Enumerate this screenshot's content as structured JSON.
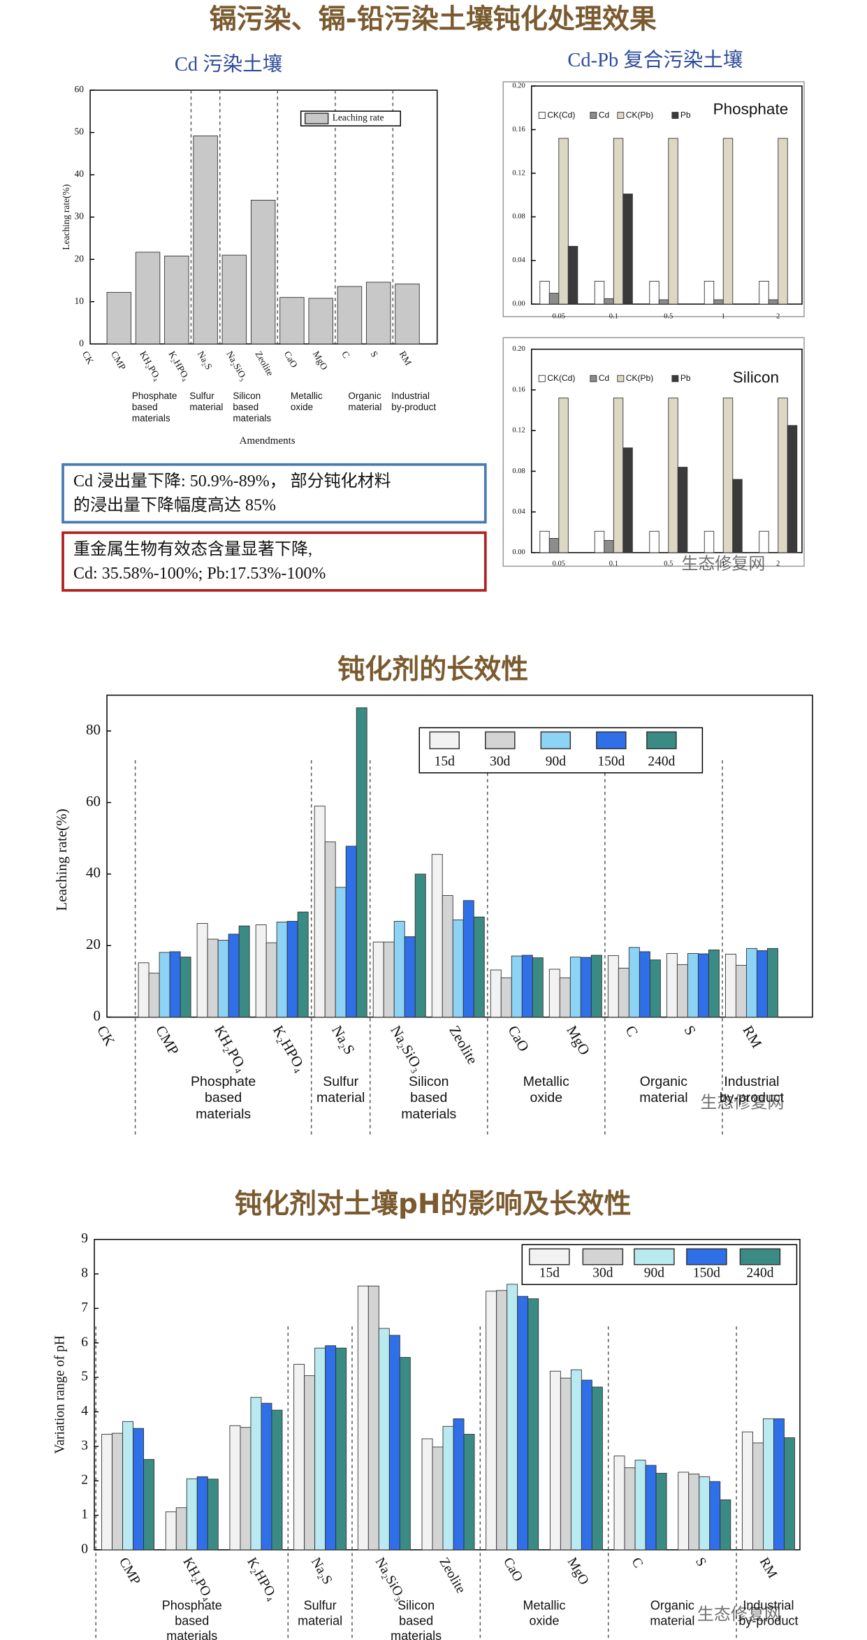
{
  "heading": "镉污染、镉-铅污染土壤钝化处理效果",
  "watermark": "生态修复网",
  "notes": [
    [
      "Cd 浸出量下降: 50.9%-89%， 部分钝化材料",
      "的浸出量下降幅度高达 85%"
    ],
    [
      "重金属生物有效态含量显著下降,",
      "Cd: 35.58%-100%; Pb:17.53%-100%"
    ]
  ],
  "chart_data": [
    {
      "type": "bar",
      "title": "Cd 污染土壤",
      "y_label": "Leaching rate(%)",
      "x_label": "Amendments",
      "categories": [
        "CK",
        "CMP",
        "KH₂PO₄",
        "K₂HPO₄",
        "Na₂S",
        "Na₂SiO₃",
        "Zeolite",
        "CaO",
        "MgO",
        "C",
        "S",
        "RM"
      ],
      "series": [
        {
          "name": "Leaching rate",
          "color": "#c8c8c8",
          "values": [
            0,
            12.2,
            21.7,
            20.8,
            49.2,
            21,
            34,
            11,
            10.8,
            13.6,
            14.6,
            14.2
          ]
        }
      ],
      "groups": [
        [
          "Phosphate",
          "based",
          "materials"
        ],
        [
          "Sulfur",
          "material"
        ],
        [
          "Silicon",
          "based",
          "materials"
        ],
        [
          "Metallic",
          "oxide"
        ],
        [
          "Organic",
          "material"
        ],
        [
          "Industrial",
          "by-product"
        ]
      ],
      "ylim": [
        0,
        60
      ],
      "yticks": [
        0,
        10,
        20,
        30,
        40,
        50,
        60
      ]
    },
    {
      "type": "bar",
      "title": "Cd-Pb 复合污染土壤",
      "label": "Phosphate",
      "categories": [
        "0.05",
        "0.1",
        "0.5",
        "1",
        "2"
      ],
      "series": [
        {
          "name": "CK(Cd)",
          "color": "#ffffff",
          "values": [
            0.021,
            0.021,
            0.021,
            0.021,
            0.021
          ]
        },
        {
          "name": "Cd",
          "color": "#8c8c8c",
          "values": [
            0.01,
            0.005,
            0.004,
            0.004,
            0.004
          ]
        },
        {
          "name": "CK(Pb)",
          "color": "#ddd8c4",
          "values": [
            0.152,
            0.152,
            0.152,
            0.152,
            0.152
          ]
        },
        {
          "name": "Pb",
          "color": "#3a3a3a",
          "values": [
            0.053,
            0.101,
            0,
            0,
            0
          ]
        }
      ],
      "ylim": [
        0,
        0.2
      ],
      "yticks": [
        {
          "value": 0,
          "label": "0.00"
        },
        0.04,
        0.08,
        0.12,
        0.16,
        {
          "value": 0.2,
          "label": "0.20"
        }
      ]
    },
    {
      "type": "bar",
      "label": "Silicon",
      "categories": [
        "0.05",
        "0.1",
        "0.5",
        "1",
        "2"
      ],
      "series": [
        {
          "name": "CK(Cd)",
          "color": "#ffffff",
          "values": [
            0.021,
            0.021,
            0.021,
            0.021,
            0.021
          ]
        },
        {
          "name": "Cd",
          "color": "#8c8c8c",
          "values": [
            0.014,
            0.012,
            0,
            0,
            0
          ]
        },
        {
          "name": "CK(Pb)",
          "color": "#ddd8c4",
          "values": [
            0.152,
            0.152,
            0.152,
            0.152,
            0.152
          ]
        },
        {
          "name": "Pb",
          "color": "#3a3a3a",
          "values": [
            0,
            0.103,
            0.084,
            0.072,
            0.125
          ]
        }
      ],
      "ylim": [
        0,
        0.2
      ],
      "yticks": [
        {
          "value": 0,
          "label": "0.00"
        },
        0.04,
        0.08,
        0.12,
        0.16,
        {
          "value": 0.2,
          "label": "0.20"
        }
      ]
    },
    {
      "type": "bar",
      "title": "钝化剂的长效性",
      "y_label": "Leaching rate(%)",
      "categories": [
        "CK",
        "CMP",
        "KH₂PO₄",
        "K₂HPO₄",
        "Na₂S",
        "Na₂SiO₃",
        "Zeolite",
        "CaO",
        "MgO",
        "C",
        "S",
        "RM"
      ],
      "series": [
        {
          "name": "15d",
          "color": "#f2f2f2",
          "values": [
            0,
            15.2,
            26.2,
            25.8,
            59,
            21,
            45.5,
            13.2,
            13.4,
            17.2,
            17.8,
            17.6
          ]
        },
        {
          "name": "30d",
          "color": "#d4d4d4",
          "values": [
            0,
            12.3,
            21.8,
            20.8,
            49,
            21,
            34,
            11,
            11,
            13.7,
            14.7,
            14.5
          ]
        },
        {
          "name": "90d",
          "color": "#8dd3f5",
          "values": [
            0,
            18.1,
            21.5,
            26.6,
            36.3,
            26.8,
            27.2,
            17.1,
            16.8,
            19.5,
            17.8,
            19.2
          ]
        },
        {
          "name": "150d",
          "color": "#2f6fe8",
          "values": [
            0,
            18.3,
            23.2,
            26.8,
            47.8,
            22.5,
            32.6,
            17.3,
            16.7,
            18.3,
            17.7,
            18.6
          ]
        },
        {
          "name": "240d",
          "color": "#3a8b84",
          "values": [
            0,
            16.8,
            25.5,
            29.4,
            86.5,
            40,
            28,
            16.6,
            17.3,
            16,
            18.8,
            19.2
          ]
        }
      ],
      "groups": [
        [
          "Phosphate",
          "based",
          "materials"
        ],
        [
          "Sulfur",
          "material"
        ],
        [
          "Silicon",
          "based",
          "materials"
        ],
        [
          "Metallic",
          "oxide"
        ],
        [
          "Organic",
          "material"
        ],
        [
          "Industrial",
          "by-product"
        ]
      ],
      "ylim": [
        0,
        90
      ],
      "yticks": [
        0,
        20,
        40,
        60,
        80
      ]
    },
    {
      "type": "bar",
      "title": "钝化剂对土壤pH的影响及长效性",
      "y_label": "Variation range of pH",
      "categories": [
        "CMP",
        "KH₂PO₄",
        "K₂HPO₄",
        "Na₂S",
        "Na₂SiO₃",
        "Zeolite",
        "CaO",
        "MgO",
        "C",
        "S",
        "RM"
      ],
      "series": [
        {
          "name": "15d",
          "color": "#f2f2f2",
          "values": [
            3.35,
            1.1,
            3.6,
            5.38,
            7.65,
            3.22,
            7.5,
            5.18,
            2.72,
            2.25,
            3.42
          ]
        },
        {
          "name": "30d",
          "color": "#d4d4d4",
          "values": [
            3.38,
            1.22,
            3.55,
            5.05,
            7.65,
            2.98,
            7.52,
            4.98,
            2.38,
            2.2,
            3.1
          ]
        },
        {
          "name": "90d",
          "color": "#b8eaf0",
          "values": [
            3.72,
            2.06,
            4.42,
            5.85,
            6.42,
            3.58,
            7.7,
            5.22,
            2.6,
            2.12,
            3.8
          ]
        },
        {
          "name": "150d",
          "color": "#2f6fe8",
          "values": [
            3.52,
            2.12,
            4.25,
            5.92,
            6.22,
            3.8,
            7.35,
            4.92,
            2.45,
            1.98,
            3.8
          ]
        },
        {
          "name": "240d",
          "color": "#3a8b84",
          "values": [
            2.62,
            2.05,
            4.05,
            5.85,
            5.58,
            3.35,
            7.28,
            4.72,
            2.22,
            1.45,
            3.25
          ]
        }
      ],
      "groups": [
        [
          "Phosphate",
          "based",
          "materials"
        ],
        [
          "Sulfur",
          "material"
        ],
        [
          "Silicon",
          "based",
          "materials"
        ],
        [
          "Metallic",
          "oxide"
        ],
        [
          "Organic",
          "material"
        ],
        [
          "Industrial",
          "by-product"
        ]
      ],
      "ylim": [
        0,
        9
      ],
      "yticks": [
        0,
        1,
        2,
        3,
        4,
        5,
        6,
        7,
        8,
        9
      ]
    }
  ]
}
